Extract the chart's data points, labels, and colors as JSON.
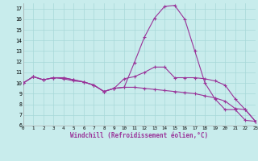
{
  "background_color": "#c8ecec",
  "grid_color": "#a8d8d8",
  "line_color": "#993399",
  "xlabel": "Windchill (Refroidissement éolien,°C)",
  "xlim": [
    0,
    23
  ],
  "ylim": [
    6,
    17.5
  ],
  "yticks": [
    6,
    7,
    8,
    9,
    10,
    11,
    12,
    13,
    14,
    15,
    16,
    17
  ],
  "xticks": [
    0,
    1,
    2,
    3,
    4,
    5,
    6,
    7,
    8,
    9,
    10,
    11,
    12,
    13,
    14,
    15,
    16,
    17,
    18,
    19,
    20,
    21,
    22,
    23
  ],
  "curve1_x": [
    0,
    1,
    2,
    3,
    4,
    5,
    6,
    7,
    8,
    9,
    10,
    11,
    12,
    13,
    14,
    15,
    16,
    17,
    18,
    19,
    20,
    21,
    22,
    23
  ],
  "curve1_y": [
    10.0,
    10.6,
    10.3,
    10.5,
    10.5,
    10.3,
    10.1,
    9.8,
    9.2,
    9.5,
    9.6,
    11.9,
    14.3,
    16.1,
    17.2,
    17.3,
    16.0,
    13.0,
    10.0,
    8.5,
    7.5,
    7.5,
    6.5,
    6.4
  ],
  "curve2_x": [
    0,
    1,
    2,
    3,
    4,
    5,
    6,
    7,
    8,
    9,
    10,
    11,
    12,
    13,
    14,
    15,
    16,
    17,
    18,
    19,
    20,
    21,
    22,
    23
  ],
  "curve2_y": [
    10.0,
    10.6,
    10.3,
    10.5,
    10.4,
    10.2,
    10.1,
    9.8,
    9.2,
    9.5,
    9.6,
    9.6,
    9.5,
    9.4,
    9.3,
    9.2,
    9.1,
    9.0,
    8.8,
    8.6,
    8.3,
    7.6,
    7.5,
    6.4
  ],
  "curve3_x": [
    0,
    1,
    2,
    3,
    4,
    5,
    6,
    7,
    8,
    9,
    10,
    11,
    12,
    13,
    14,
    15,
    16,
    17,
    18,
    19,
    20,
    21,
    22,
    23
  ],
  "curve3_y": [
    10.0,
    10.6,
    10.3,
    10.5,
    10.5,
    10.3,
    10.1,
    9.8,
    9.2,
    9.5,
    10.4,
    10.6,
    11.0,
    11.5,
    11.5,
    10.5,
    10.5,
    10.5,
    10.4,
    10.2,
    9.8,
    8.5,
    7.5,
    6.4
  ]
}
